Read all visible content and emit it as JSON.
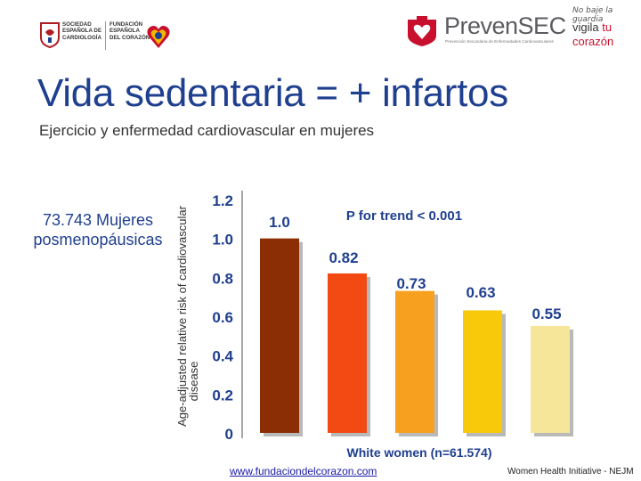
{
  "header": {
    "logo_left_1_text": "SOCIEDAD ESPAÑOLA DE CARDIOLOGÍA",
    "logo_left_2_text": "FUNDACIÓN ESPAÑOLA DEL CORAZÓN",
    "brand_name": "PrevenSEC",
    "brand_subtitle": "Prevención Secundaria de Enfermedades Cardiovasculares",
    "tagline_1": "No baje la guardia",
    "tagline_2a": "vigila ",
    "tagline_2b": "tu",
    "tagline_3": "corazón"
  },
  "title": "Vida sedentaria = + infartos",
  "subtitle": "Ejercicio y enfermedad cardiovascular en mujeres",
  "side_label": "73.743 Mujeres posmenopáusicas",
  "chart_data": {
    "type": "bar",
    "title": "",
    "ylabel": "Age-adjusted relative risk of cardiovascular disease",
    "xlabel": "White women (n=61.574)",
    "annotation": "P for trend < 0.001",
    "ylim": [
      0,
      1.2
    ],
    "y_ticks": [
      "0",
      "0.2",
      "0.4",
      "0.6",
      "0.8",
      "1.0",
      "1.2"
    ],
    "y_tick_values": [
      0,
      0.2,
      0.4,
      0.6,
      0.8,
      1.0,
      1.2
    ],
    "values": [
      1.0,
      0.82,
      0.73,
      0.63,
      0.55
    ],
    "value_labels": [
      "1.0",
      "0.82",
      "0.73",
      "0.63",
      "0.55"
    ],
    "colors": [
      "#8b2e06",
      "#f24a12",
      "#f7a020",
      "#f8c90a",
      "#f6e69a"
    ],
    "grid": false
  },
  "footer": {
    "url": "www.fundaciondelcorazon.com",
    "source": "Women Health Initiative - NEJM"
  }
}
